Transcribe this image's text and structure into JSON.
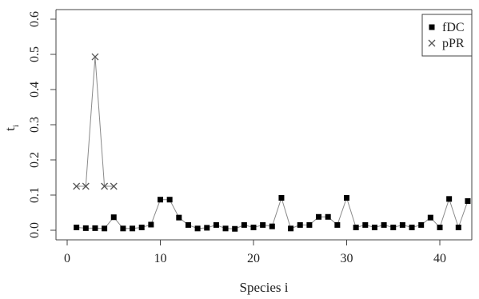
{
  "chart_data": {
    "type": "line",
    "xlabel": "Species i",
    "ylabel": "t",
    "ylabel_subscript": "i",
    "xlim": [
      0,
      43
    ],
    "ylim": [
      0,
      0.6
    ],
    "x_ticks": [
      0,
      10,
      20,
      30,
      40
    ],
    "y_ticks": [
      0.0,
      0.1,
      0.2,
      0.3,
      0.4,
      0.5,
      0.6
    ],
    "y_tick_labels": [
      "0.0",
      "0.1",
      "0.2",
      "0.3",
      "0.4",
      "0.5",
      "0.6"
    ],
    "grid": false,
    "legend_position": "top-right",
    "colors": {
      "line": "#8a8a8a",
      "fDC_marker": "#000000",
      "pPR_marker": "#555555",
      "axis": "#444444"
    },
    "series": [
      {
        "name": "fDC",
        "marker": "filled-square",
        "x": [
          1,
          2,
          3,
          4,
          5,
          6,
          7,
          8,
          9,
          10,
          11,
          12,
          13,
          14,
          15,
          16,
          17,
          18,
          19,
          20,
          21,
          22,
          23,
          24,
          25,
          26,
          27,
          28,
          29,
          30,
          31,
          32,
          33,
          34,
          35,
          36,
          37,
          38,
          39,
          40,
          41,
          42,
          43
        ],
        "y": [
          0.008,
          0.006,
          0.006,
          0.005,
          0.037,
          0.005,
          0.005,
          0.008,
          0.016,
          0.087,
          0.087,
          0.036,
          0.015,
          0.005,
          0.007,
          0.015,
          0.005,
          0.004,
          0.015,
          0.008,
          0.015,
          0.011,
          0.092,
          0.005,
          0.015,
          0.015,
          0.038,
          0.038,
          0.015,
          0.092,
          0.008,
          0.015,
          0.008,
          0.015,
          0.008,
          0.015,
          0.008,
          0.015,
          0.036,
          0.008,
          0.089,
          0.008,
          0.083
        ]
      },
      {
        "name": "pPR",
        "marker": "cross",
        "x": [
          1,
          2,
          3,
          4,
          5
        ],
        "y": [
          0.125,
          0.125,
          0.493,
          0.125,
          0.125
        ]
      }
    ]
  }
}
